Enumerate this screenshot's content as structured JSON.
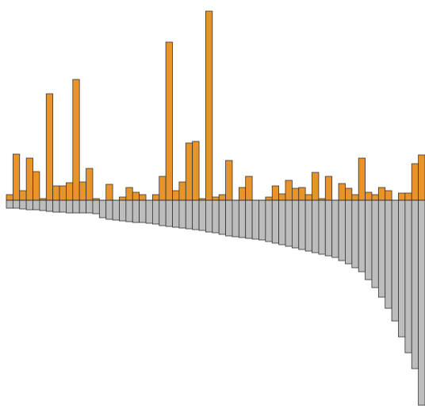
{
  "chart_data": {
    "type": "bar",
    "ylim": [
      -258,
      238
    ],
    "series": [
      {
        "color": "#e8942a",
        "values": [
          7,
          58,
          12,
          53,
          36,
          2,
          134,
          18,
          18,
          22,
          152,
          23,
          40,
          2,
          0,
          20,
          0,
          4,
          16,
          10,
          7,
          0,
          7,
          30,
          199,
          12,
          23,
          72,
          74,
          2,
          238,
          4,
          7,
          50,
          0,
          16,
          30,
          0,
          0,
          4,
          18,
          8,
          25,
          15,
          16,
          7,
          35,
          2,
          30,
          0,
          21,
          15,
          7,
          53,
          10,
          7,
          16,
          12,
          0,
          9,
          9,
          46,
          57
        ]
      },
      {
        "color": "#bdbdbd",
        "values": [
          -10,
          -10,
          -11,
          -12,
          -12,
          -13,
          -14,
          -15,
          -15,
          -16,
          -16,
          -16,
          -16,
          -17,
          -22,
          -24,
          -25,
          -26,
          -27,
          -28,
          -28,
          -29,
          -30,
          -32,
          -33,
          -34,
          -35,
          -36,
          -37,
          -38,
          -40,
          -41,
          -43,
          -45,
          -46,
          -47,
          -48,
          -49,
          -50,
          -52,
          -54,
          -56,
          -58,
          -60,
          -62,
          -64,
          -66,
          -68,
          -70,
          -72,
          -76,
          -80,
          -85,
          -90,
          -100,
          -110,
          -122,
          -136,
          -152,
          -172,
          -192,
          -212,
          -258
        ]
      }
    ]
  }
}
